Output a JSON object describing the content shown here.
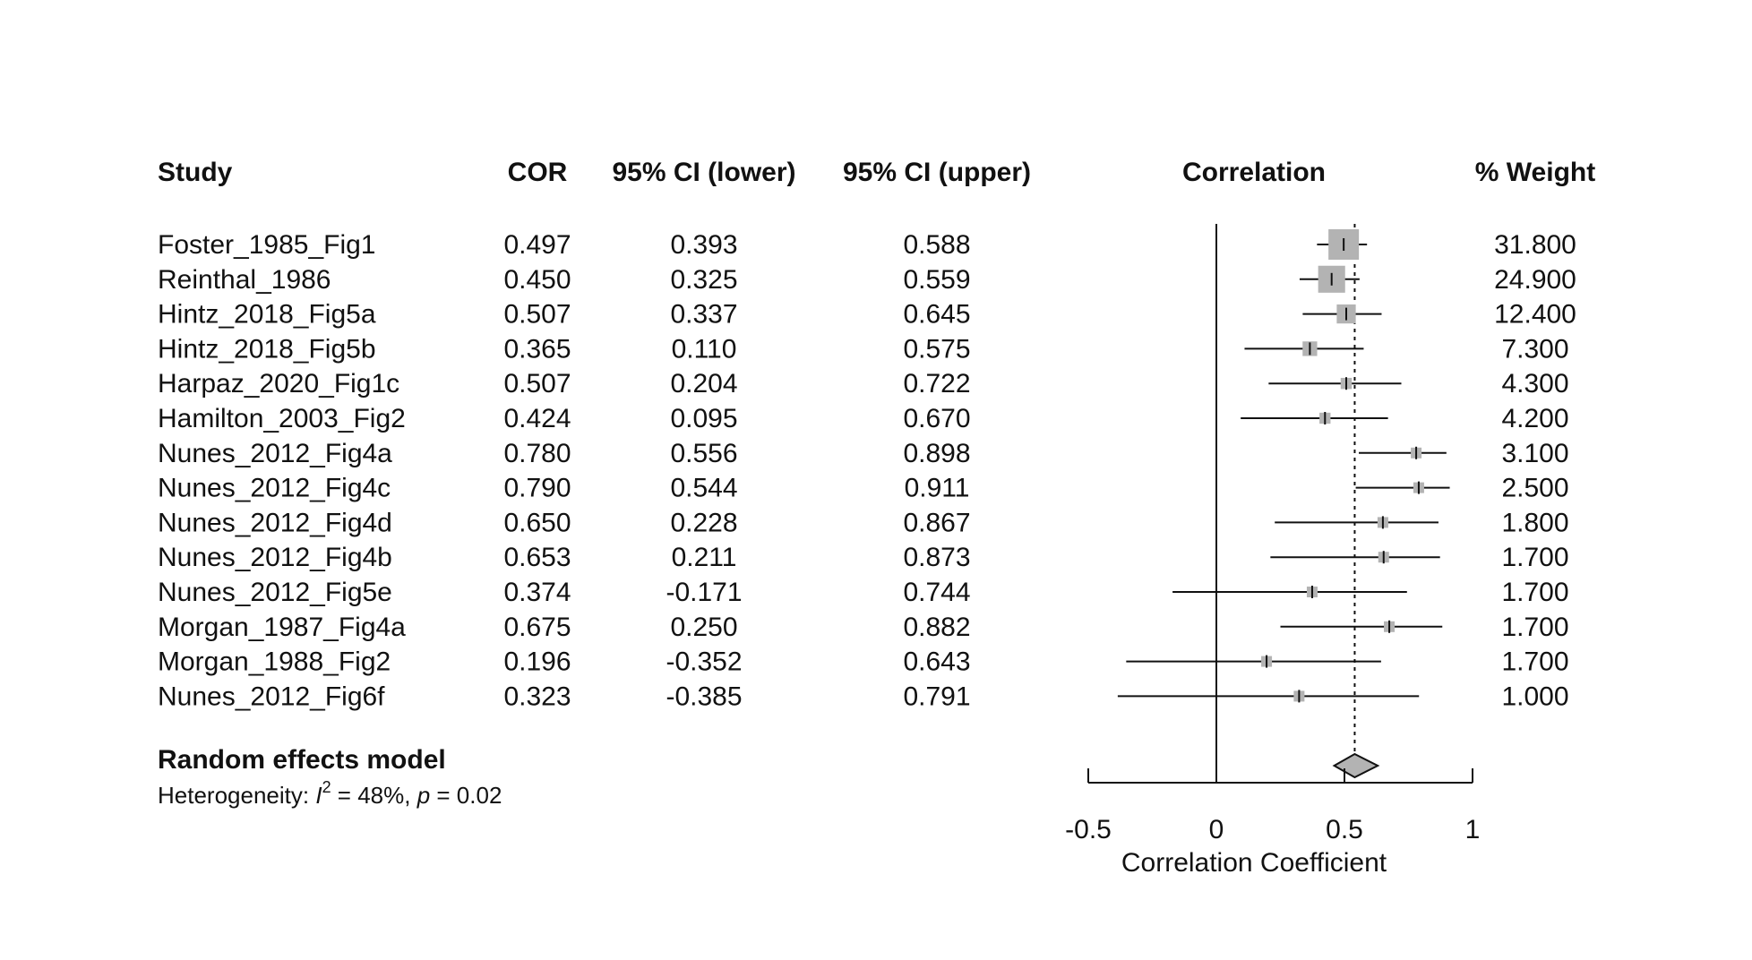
{
  "headers": {
    "study": "Study",
    "cor": "COR",
    "ci_lower": "95% CI (lower)",
    "ci_upper": "95% CI (upper)",
    "plot": "Correlation",
    "weight": "% Weight"
  },
  "summary": {
    "label": "Random effects model",
    "heterogeneity_prefix": "Heterogeneity: ",
    "i2_symbol": "I",
    "i2_superscript": "2",
    "i2_value": " = 48%, ",
    "p_symbol": "p",
    "p_value": " = 0.02"
  },
  "chart_data": {
    "type": "forest",
    "xlabel": "Correlation Coefficient",
    "xlim": [
      -0.5,
      1
    ],
    "xticks": [
      "-0.5",
      "0",
      "0.5",
      "1"
    ],
    "xtick_values": [
      -0.5,
      0,
      0.5,
      1
    ],
    "null_line": 0,
    "pooled_estimate": 0.54,
    "pooled_ci": [
      0.46,
      0.63
    ],
    "studies": [
      {
        "name": "Foster_1985_Fig1",
        "cor": "0.497",
        "lower": "0.393",
        "upper": "0.588",
        "weight": "31.800"
      },
      {
        "name": "Reinthal_1986",
        "cor": "0.450",
        "lower": "0.325",
        "upper": "0.559",
        "weight": "24.900"
      },
      {
        "name": "Hintz_2018_Fig5a",
        "cor": "0.507",
        "lower": "0.337",
        "upper": "0.645",
        "weight": "12.400"
      },
      {
        "name": "Hintz_2018_Fig5b",
        "cor": "0.365",
        "lower": "0.110",
        "upper": "0.575",
        "weight": "7.300"
      },
      {
        "name": "Harpaz_2020_Fig1c",
        "cor": "0.507",
        "lower": "0.204",
        "upper": "0.722",
        "weight": "4.300"
      },
      {
        "name": "Hamilton_2003_Fig2",
        "cor": "0.424",
        "lower": "0.095",
        "upper": "0.670",
        "weight": "4.200"
      },
      {
        "name": "Nunes_2012_Fig4a",
        "cor": "0.780",
        "lower": "0.556",
        "upper": "0.898",
        "weight": "3.100"
      },
      {
        "name": "Nunes_2012_Fig4c",
        "cor": "0.790",
        "lower": "0.544",
        "upper": "0.911",
        "weight": "2.500"
      },
      {
        "name": "Nunes_2012_Fig4d",
        "cor": "0.650",
        "lower": "0.228",
        "upper": "0.867",
        "weight": "1.800"
      },
      {
        "name": "Nunes_2012_Fig4b",
        "cor": "0.653",
        "lower": "0.211",
        "upper": "0.873",
        "weight": "1.700"
      },
      {
        "name": "Nunes_2012_Fig5e",
        "cor": "0.374",
        "lower": "-0.171",
        "upper": "0.744",
        "weight": "1.700"
      },
      {
        "name": "Morgan_1987_Fig4a",
        "cor": "0.675",
        "lower": "0.250",
        "upper": "0.882",
        "weight": "1.700"
      },
      {
        "name": "Morgan_1988_Fig2",
        "cor": "0.196",
        "lower": "-0.352",
        "upper": "0.643",
        "weight": "1.700"
      },
      {
        "name": "Nunes_2012_Fig6f",
        "cor": "0.323",
        "lower": "-0.385",
        "upper": "0.791",
        "weight": "1.000"
      }
    ],
    "colors": {
      "box": "#b3b3b3",
      "diamond": "#b3b3b3",
      "line": "#111111"
    }
  }
}
